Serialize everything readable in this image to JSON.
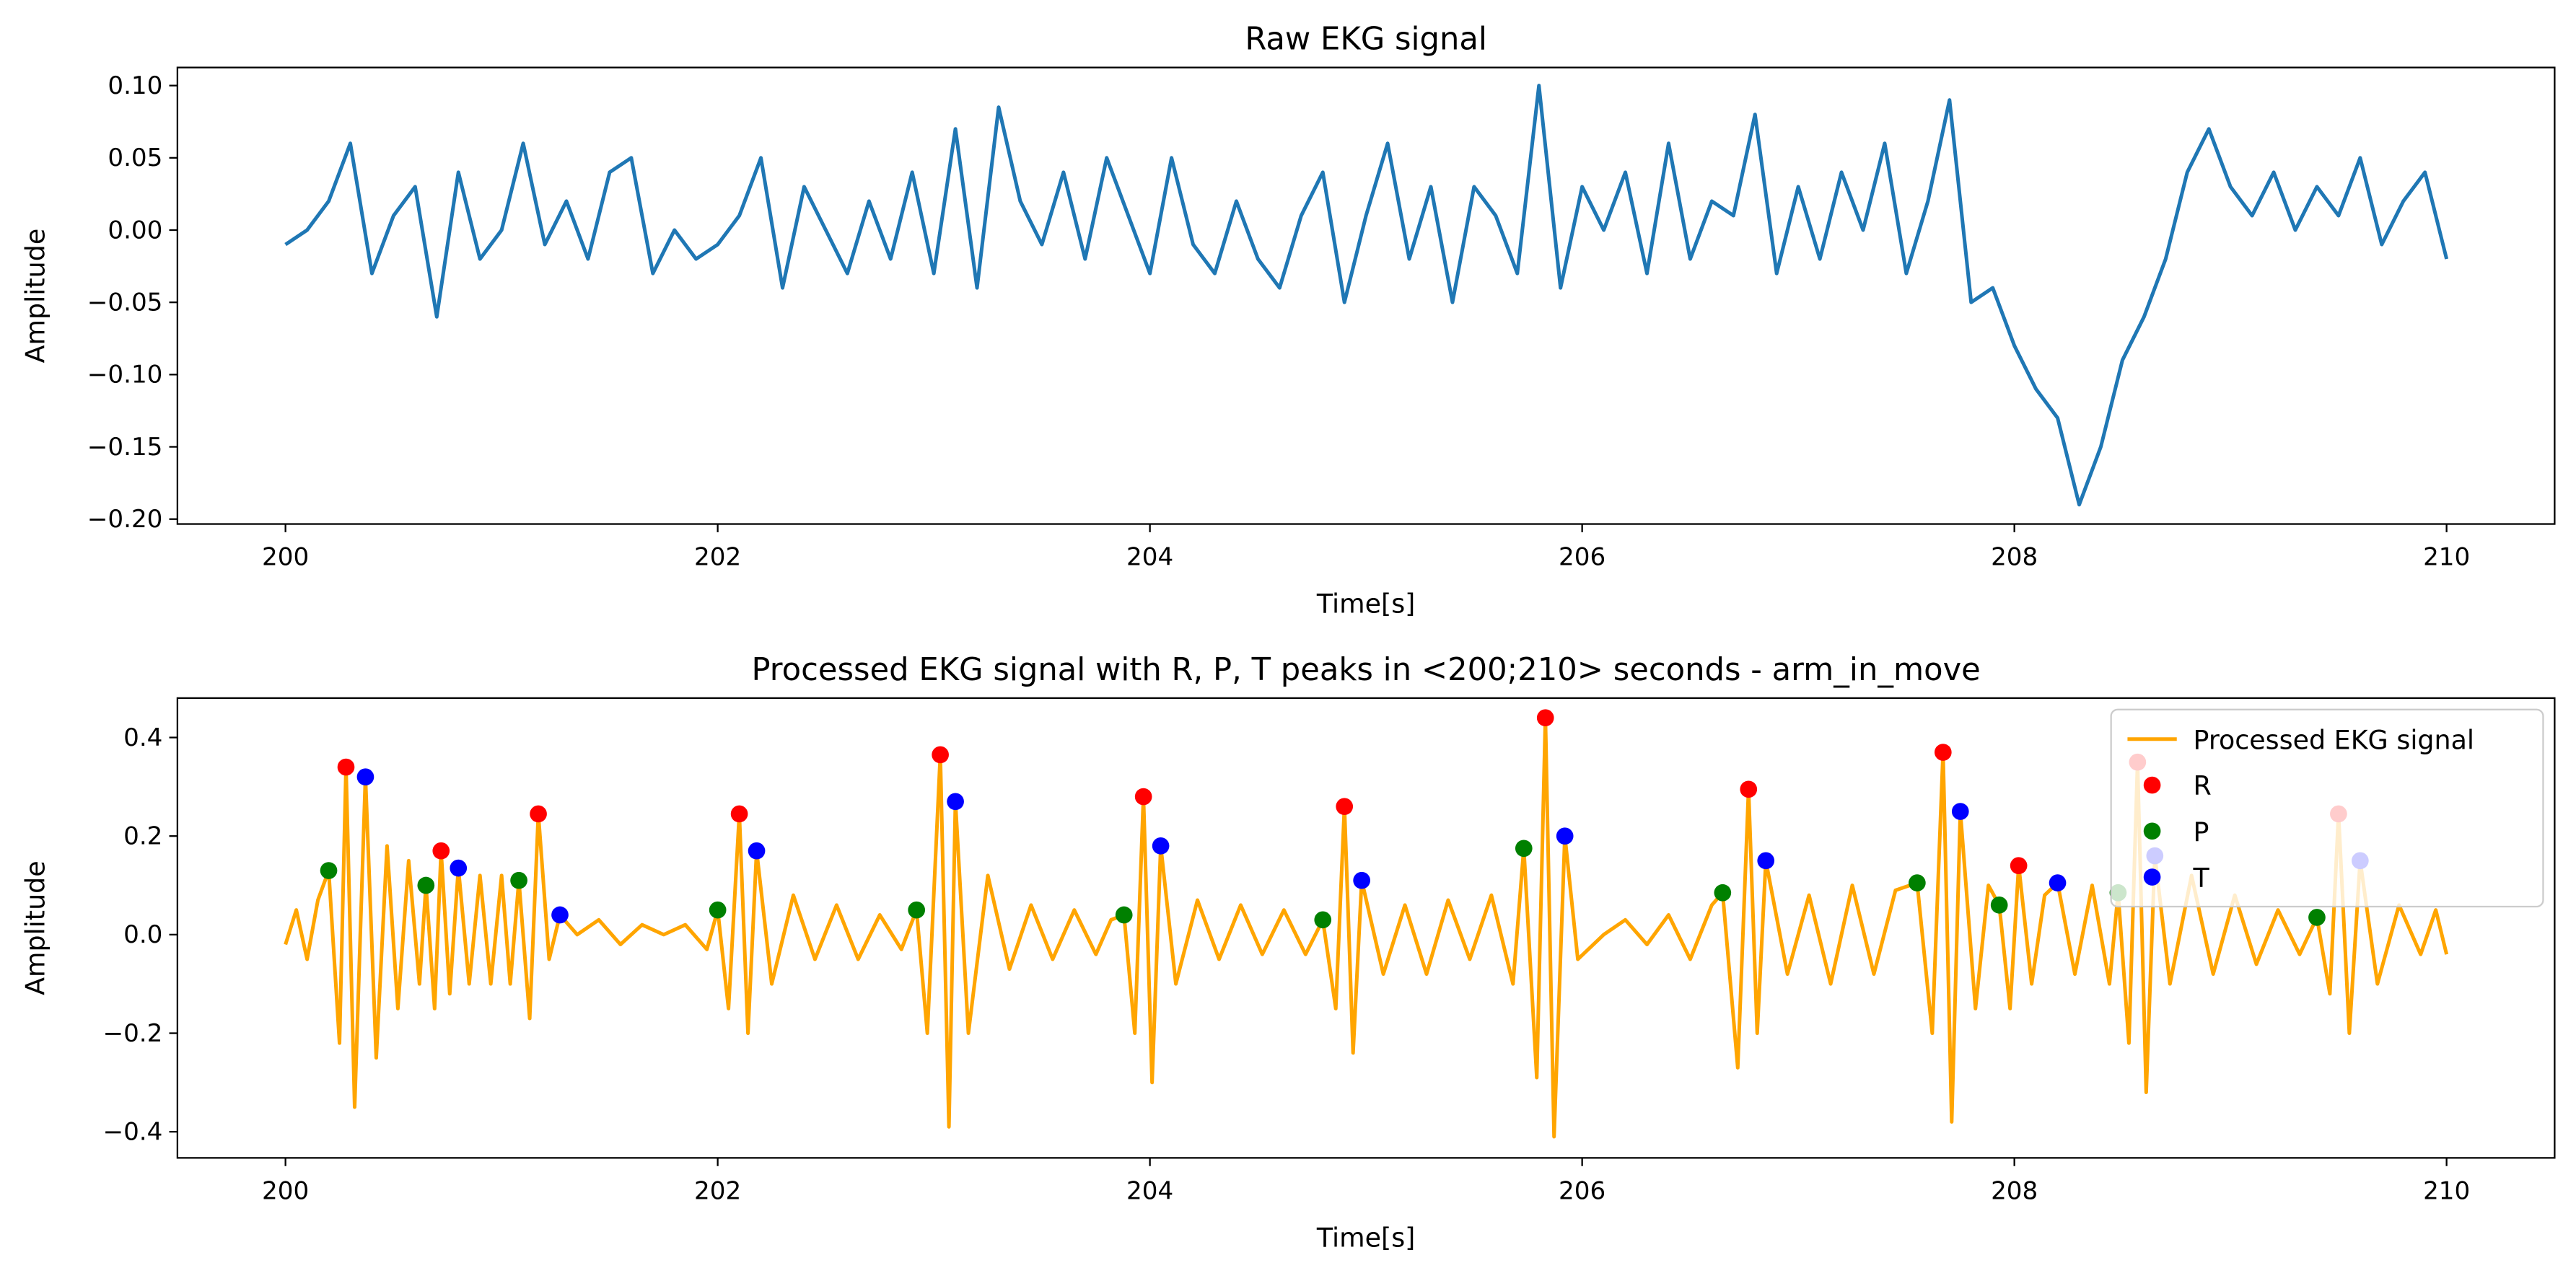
{
  "chart_data": [
    {
      "type": "line",
      "title": "Raw EKG signal",
      "xlabel": "Time[s]",
      "ylabel": "Amplitude",
      "xlim": [
        199.5,
        210.5
      ],
      "ylim": [
        -0.2034,
        0.1125
      ],
      "xticks": [
        200,
        202,
        204,
        206,
        208,
        210
      ],
      "yticks": [
        {
          "value": -0.2,
          "label": "−0.20"
        },
        {
          "value": -0.15,
          "label": "−0.15"
        },
        {
          "value": -0.1,
          "label": "−0.10"
        },
        {
          "value": -0.05,
          "label": "−0.05"
        },
        {
          "value": 0,
          "label": "0.00"
        },
        0.05,
        {
          "value": 0.1,
          "label": "0.10"
        }
      ],
      "series": [
        {
          "color": "#1f77b4",
          "x": [
            200.0,
            200.1,
            200.2,
            200.3,
            200.4,
            200.5,
            200.6,
            200.7,
            200.8,
            200.9,
            201.0,
            201.1,
            201.2,
            201.3,
            201.4,
            201.5,
            201.6,
            201.7,
            201.8,
            201.9,
            202.0,
            202.1,
            202.2,
            202.3,
            202.4,
            202.5,
            202.6,
            202.7,
            202.8,
            202.9,
            203.0,
            203.1,
            203.2,
            203.3,
            203.4,
            203.5,
            203.6,
            203.7,
            203.8,
            203.9,
            204.0,
            204.1,
            204.2,
            204.3,
            204.4,
            204.5,
            204.6,
            204.7,
            204.8,
            204.9,
            205.0,
            205.1,
            205.2,
            205.3,
            205.4,
            205.5,
            205.6,
            205.7,
            205.8,
            205.9,
            206.0,
            206.1,
            206.2,
            206.3,
            206.4,
            206.5,
            206.6,
            206.7,
            206.8,
            206.9,
            207.0,
            207.1,
            207.2,
            207.3,
            207.4,
            207.5,
            207.6,
            207.7,
            207.8,
            207.9,
            208.0,
            208.1,
            208.2,
            208.3,
            208.4,
            208.5,
            208.6,
            208.7,
            208.8,
            208.9,
            209.0,
            209.1,
            209.2,
            209.3,
            209.4,
            209.5,
            209.6,
            209.7,
            209.8,
            209.9,
            210.0
          ],
          "values": [
            -0.01,
            0.0,
            0.02,
            0.06,
            -0.03,
            0.01,
            0.03,
            -0.06,
            0.04,
            -0.02,
            0.0,
            0.06,
            -0.01,
            0.02,
            -0.02,
            0.04,
            0.05,
            -0.03,
            0.0,
            -0.02,
            -0.01,
            0.01,
            0.05,
            -0.04,
            0.03,
            0.0,
            -0.03,
            0.02,
            -0.02,
            0.04,
            -0.03,
            0.07,
            -0.04,
            0.085,
            0.02,
            -0.01,
            0.04,
            -0.02,
            0.05,
            0.01,
            -0.03,
            0.05,
            -0.01,
            -0.03,
            0.02,
            -0.02,
            -0.04,
            0.01,
            0.04,
            -0.05,
            0.01,
            0.06,
            -0.02,
            0.03,
            -0.05,
            0.03,
            0.01,
            -0.03,
            0.1,
            -0.04,
            0.03,
            0.0,
            0.04,
            -0.03,
            0.06,
            -0.02,
            0.02,
            0.01,
            0.08,
            -0.03,
            0.03,
            -0.02,
            0.04,
            0.0,
            0.06,
            -0.03,
            0.02,
            0.09,
            -0.05,
            -0.04,
            -0.08,
            -0.11,
            -0.13,
            -0.19,
            -0.15,
            -0.09,
            -0.06,
            -0.02,
            0.04,
            0.07,
            0.03,
            0.01,
            0.04,
            0.0,
            0.03,
            0.01,
            0.05,
            -0.01,
            0.02,
            0.04,
            -0.02
          ]
        }
      ]
    },
    {
      "type": "line",
      "title": "Processed EKG signal with R, P, T peaks in <200;210> seconds - arm_in_move",
      "xlabel": "Time[s]",
      "ylabel": "Amplitude",
      "xlim": [
        199.5,
        210.5
      ],
      "ylim": [
        -0.453,
        0.48
      ],
      "xticks": [
        200,
        202,
        204,
        206,
        208,
        210
      ],
      "yticks": [
        {
          "value": -0.4,
          "label": "−0.4"
        },
        {
          "value": -0.2,
          "label": "−0.2"
        },
        {
          "value": 0,
          "label": "0.0"
        },
        0.2,
        0.4
      ],
      "legend": "upper right",
      "series": [
        {
          "name": "Processed EKG signal",
          "color": "orange",
          "x": [
            200.0,
            200.05,
            200.1,
            200.15,
            200.2,
            200.25,
            200.28,
            200.32,
            200.37,
            200.42,
            200.47,
            200.52,
            200.57,
            200.62,
            200.65,
            200.69,
            200.72,
            200.76,
            200.8,
            200.85,
            200.9,
            200.95,
            201.0,
            201.04,
            201.08,
            201.13,
            201.17,
            201.22,
            201.27,
            201.35,
            201.45,
            201.55,
            201.65,
            201.75,
            201.85,
            201.95,
            202.0,
            202.05,
            202.1,
            202.14,
            202.18,
            202.25,
            202.35,
            202.45,
            202.55,
            202.65,
            202.75,
            202.85,
            202.92,
            202.97,
            203.03,
            203.07,
            203.1,
            203.16,
            203.25,
            203.35,
            203.45,
            203.55,
            203.65,
            203.75,
            203.82,
            203.88,
            203.93,
            203.97,
            204.01,
            204.05,
            204.12,
            204.22,
            204.32,
            204.42,
            204.52,
            204.62,
            204.72,
            204.8,
            204.86,
            204.9,
            204.94,
            204.98,
            205.08,
            205.18,
            205.28,
            205.38,
            205.48,
            205.58,
            205.68,
            205.73,
            205.79,
            205.83,
            205.87,
            205.92,
            205.98,
            206.1,
            206.2,
            206.3,
            206.4,
            206.5,
            206.6,
            206.65,
            206.72,
            206.77,
            206.81,
            206.85,
            206.95,
            207.05,
            207.15,
            207.25,
            207.35,
            207.45,
            207.55,
            207.62,
            207.67,
            207.71,
            207.75,
            207.82,
            207.88,
            207.93,
            207.98,
            208.02,
            208.08,
            208.14,
            208.2,
            208.28,
            208.36,
            208.44,
            208.48,
            208.53,
            208.57,
            208.61,
            208.65,
            208.72,
            208.82,
            208.92,
            209.02,
            209.12,
            209.22,
            209.32,
            209.4,
            209.46,
            209.5,
            209.55,
            209.6,
            209.68,
            209.78,
            209.88,
            209.95,
            210.0
          ],
          "values": [
            -0.02,
            0.05,
            -0.05,
            0.07,
            0.13,
            -0.22,
            0.34,
            -0.35,
            0.32,
            -0.25,
            0.18,
            -0.15,
            0.15,
            -0.1,
            0.1,
            -0.15,
            0.17,
            -0.12,
            0.135,
            -0.1,
            0.12,
            -0.1,
            0.12,
            -0.1,
            0.11,
            -0.17,
            0.245,
            -0.05,
            0.04,
            0.0,
            0.03,
            -0.02,
            0.02,
            0.0,
            0.02,
            -0.03,
            0.05,
            -0.15,
            0.245,
            -0.2,
            0.17,
            -0.1,
            0.08,
            -0.05,
            0.06,
            -0.05,
            0.04,
            -0.03,
            0.05,
            -0.2,
            0.365,
            -0.39,
            0.27,
            -0.2,
            0.12,
            -0.07,
            0.06,
            -0.05,
            0.05,
            -0.04,
            0.03,
            0.04,
            -0.2,
            0.28,
            -0.3,
            0.18,
            -0.1,
            0.07,
            -0.05,
            0.06,
            -0.04,
            0.05,
            -0.04,
            0.03,
            -0.15,
            0.26,
            -0.24,
            0.11,
            -0.08,
            0.06,
            -0.08,
            0.07,
            -0.05,
            0.08,
            -0.1,
            0.175,
            -0.29,
            0.44,
            -0.41,
            0.2,
            -0.05,
            0.0,
            0.03,
            -0.02,
            0.04,
            -0.05,
            0.06,
            0.085,
            -0.27,
            0.295,
            -0.2,
            0.15,
            -0.08,
            0.08,
            -0.1,
            0.1,
            -0.08,
            0.09,
            0.105,
            -0.2,
            0.37,
            -0.38,
            0.25,
            -0.15,
            0.1,
            0.06,
            -0.15,
            0.14,
            -0.1,
            0.08,
            0.105,
            -0.08,
            0.1,
            -0.1,
            0.085,
            -0.22,
            0.35,
            -0.32,
            0.16,
            -0.1,
            0.12,
            -0.08,
            0.08,
            -0.06,
            0.05,
            -0.04,
            0.035,
            -0.12,
            0.245,
            -0.2,
            0.15,
            -0.1,
            0.06,
            -0.04,
            0.05,
            -0.04
          ]
        },
        {
          "name": "R",
          "type": "scatter",
          "color": "red",
          "x": [
            200.28,
            200.72,
            201.17,
            202.1,
            203.03,
            203.97,
            204.9,
            205.83,
            206.77,
            207.67,
            208.02,
            208.57,
            209.5
          ],
          "values": [
            0.34,
            0.17,
            0.245,
            0.245,
            0.365,
            0.28,
            0.26,
            0.44,
            0.295,
            0.37,
            0.14,
            0.35,
            0.245
          ]
        },
        {
          "name": "P",
          "type": "scatter",
          "color": "green",
          "x": [
            200.2,
            200.65,
            201.08,
            202.0,
            202.92,
            203.88,
            204.8,
            205.73,
            206.65,
            207.55,
            207.93,
            208.48,
            209.4
          ],
          "values": [
            0.13,
            0.1,
            0.11,
            0.05,
            0.05,
            0.04,
            0.03,
            0.175,
            0.085,
            0.105,
            0.06,
            0.085,
            0.035
          ]
        },
        {
          "name": "T",
          "type": "scatter",
          "color": "blue",
          "x": [
            200.37,
            200.8,
            201.27,
            202.18,
            203.1,
            204.05,
            204.98,
            205.92,
            206.85,
            207.75,
            208.2,
            208.65,
            209.6
          ],
          "values": [
            0.32,
            0.135,
            0.04,
            0.17,
            0.27,
            0.18,
            0.11,
            0.2,
            0.15,
            0.25,
            0.105,
            0.16,
            0.15
          ]
        }
      ]
    }
  ]
}
